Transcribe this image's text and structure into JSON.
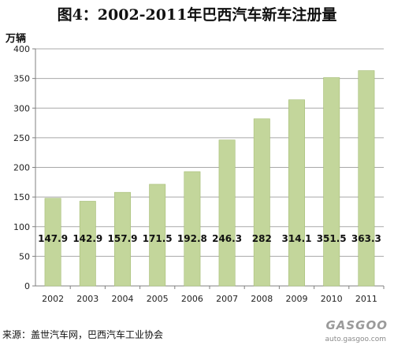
{
  "chart_data": {
    "type": "bar",
    "title": "图4：2002-2011年巴西汽车新车注册量",
    "ylabel": "万辆",
    "categories": [
      "2002",
      "2003",
      "2004",
      "2005",
      "2006",
      "2007",
      "2008",
      "2009",
      "2010",
      "2011"
    ],
    "values": [
      147.9,
      142.9,
      157.9,
      171.5,
      192.8,
      246.3,
      282,
      314.1,
      351.5,
      363.3
    ],
    "data_labels": [
      "147.9",
      "142.9",
      "157.9",
      "171.5",
      "192.8",
      "246.3",
      "282",
      "314.1",
      "351.5",
      "363.3"
    ],
    "ylim": [
      0,
      400
    ],
    "yticks": [
      0,
      50,
      100,
      150,
      200,
      250,
      300,
      350,
      400
    ],
    "grid": true,
    "legend": "none",
    "bar_color": "#c3d69b",
    "bar_edge_color": "#a6bd76"
  },
  "source": "来源：盖世汽车网，巴西汽车工业协会",
  "watermark": {
    "logo_text": "GASGOO",
    "url_text": "auto.gasgoo.com"
  }
}
